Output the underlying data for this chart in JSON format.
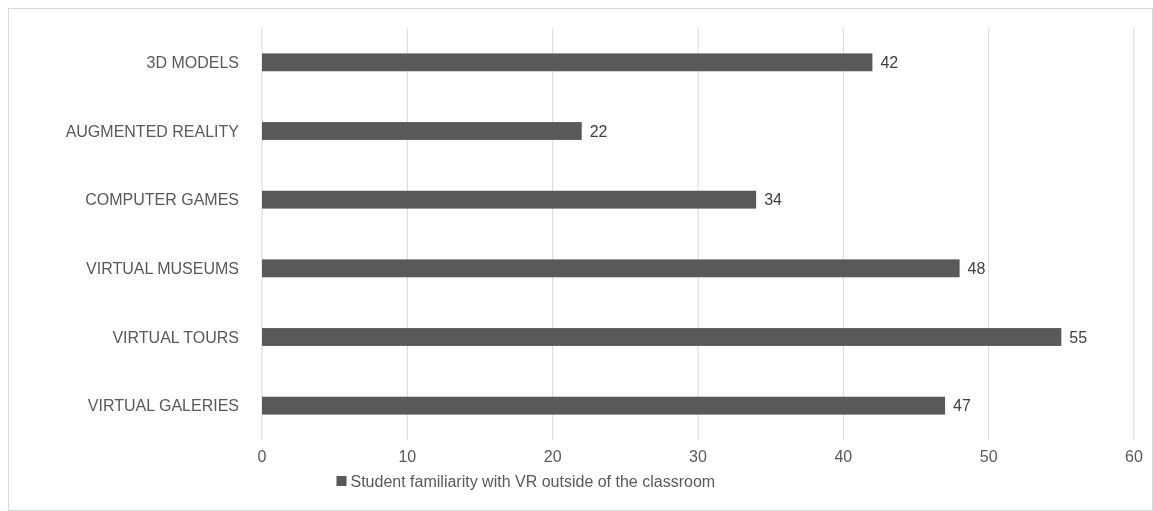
{
  "chart_data": {
    "type": "bar",
    "orientation": "horizontal",
    "categories": [
      "3D MODELS",
      "AUGMENTED REALITY",
      "COMPUTER GAMES",
      "VIRTUAL MUSEUMS",
      "VIRTUAL TOURS",
      "VIRTUAL GALERIES"
    ],
    "series": [
      {
        "name": "Student familiarity with VR outside of the classroom",
        "color": "#595959",
        "values": [
          42,
          22,
          34,
          48,
          55,
          47
        ]
      }
    ],
    "xlim": [
      0,
      60
    ],
    "xticks": [
      0,
      10,
      20,
      30,
      40,
      50,
      60
    ],
    "grid": "x",
    "legend": "bottom",
    "data_labels": true
  }
}
